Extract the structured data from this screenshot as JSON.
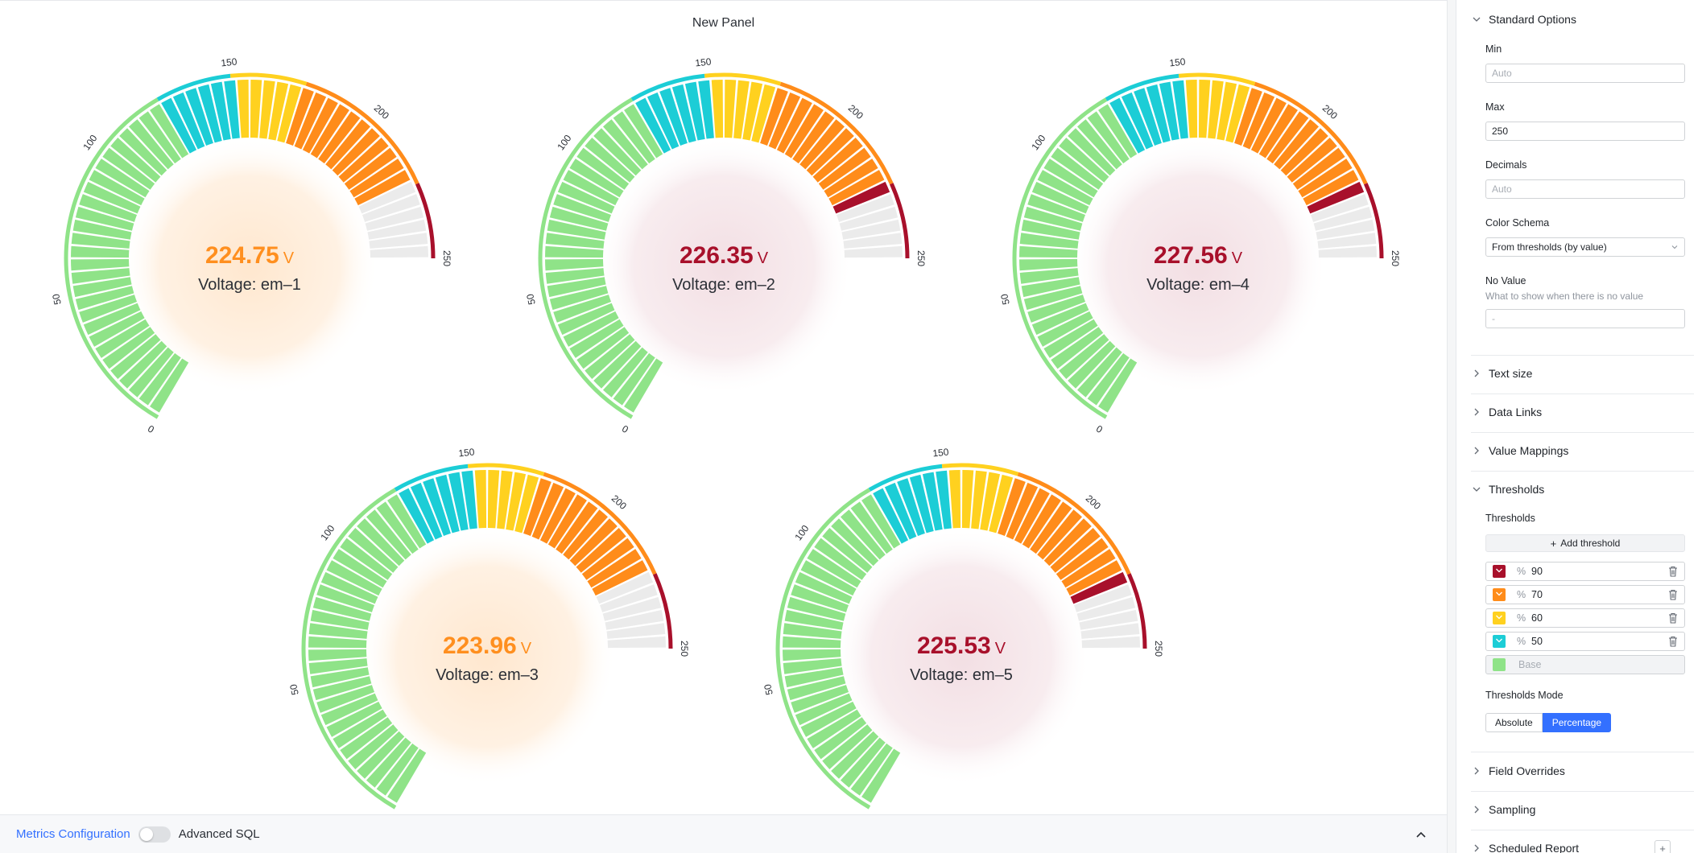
{
  "panel": {
    "title": "New Panel"
  },
  "gauge_scale": {
    "min": 0,
    "max": 250,
    "ticks": [
      0,
      50,
      100,
      150,
      200,
      250
    ]
  },
  "gauges": [
    {
      "value": "224.75",
      "unit": "V",
      "label": "Voltage: em–1",
      "value_num": 224.75,
      "value_color": "#ff8f1f",
      "glow": "orange"
    },
    {
      "value": "226.35",
      "unit": "V",
      "label": "Voltage: em–2",
      "value_num": 226.35,
      "value_color": "#a8102b",
      "glow": "red"
    },
    {
      "value": "227.56",
      "unit": "V",
      "label": "Voltage: em–4",
      "value_num": 227.56,
      "value_color": "#a8102b",
      "glow": "red"
    },
    {
      "value": "223.96",
      "unit": "V",
      "label": "Voltage: em–3",
      "value_num": 223.96,
      "value_color": "#ff8f1f",
      "glow": "orange"
    },
    {
      "value": "225.53",
      "unit": "V",
      "label": "Voltage: em–5",
      "value_num": 225.53,
      "value_color": "#a8102b",
      "glow": "red"
    }
  ],
  "colors": {
    "green": "#8fe388",
    "cyan": "#1ccdd6",
    "yellow": "#ffd11f",
    "orange": "#ff8c1a",
    "red": "#a8102b",
    "empty": "#ebebeb",
    "accent": "#3370ff"
  },
  "bottom_bar": {
    "metrics_label": "Metrics Configuration",
    "advanced_sql_label": "Advanced SQL",
    "collapse_icon": "chevron-up-icon"
  },
  "sidebar": {
    "standard_options": {
      "title": "Standard Options",
      "min_label": "Min",
      "min_placeholder": "Auto",
      "min_value": "",
      "max_label": "Max",
      "max_value": "250",
      "decimals_label": "Decimals",
      "decimals_placeholder": "Auto",
      "color_schema_label": "Color Schema",
      "color_schema_value": "From thresholds (by value)",
      "no_value_label": "No Value",
      "no_value_hint": "What to show when there is no value",
      "no_value_placeholder": "-"
    },
    "collapsed_sections": [
      "Text size",
      "Data Links",
      "Value Mappings"
    ],
    "thresholds": {
      "title": "Thresholds",
      "sub_label": "Thresholds",
      "add_label": "Add threshold",
      "rows": [
        {
          "color": "#a8102b",
          "unit": "%",
          "value": "90"
        },
        {
          "color": "#ff8c1a",
          "unit": "%",
          "value": "70"
        },
        {
          "color": "#ffd11f",
          "unit": "%",
          "value": "60"
        },
        {
          "color": "#1ccdd6",
          "unit": "%",
          "value": "50"
        }
      ],
      "base": {
        "color": "#8fe388",
        "label": "Base"
      },
      "mode_label": "Thresholds Mode",
      "modes": [
        "Absolute",
        "Percentage"
      ],
      "active_mode": "Percentage"
    },
    "bottom_sections": [
      "Field Overrides",
      "Sampling",
      "Scheduled Report"
    ]
  }
}
